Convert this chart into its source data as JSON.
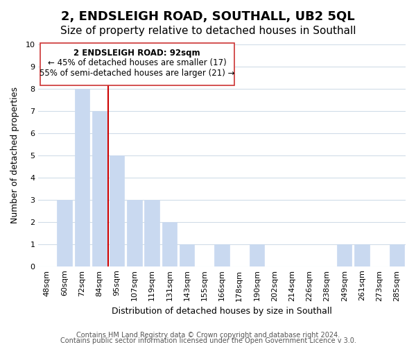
{
  "title": "2, ENDSLEIGH ROAD, SOUTHALL, UB2 5QL",
  "subtitle": "Size of property relative to detached houses in Southall",
  "xlabel": "Distribution of detached houses by size in Southall",
  "ylabel": "Number of detached properties",
  "categories": [
    "48sqm",
    "60sqm",
    "72sqm",
    "84sqm",
    "95sqm",
    "107sqm",
    "119sqm",
    "131sqm",
    "143sqm",
    "155sqm",
    "166sqm",
    "178sqm",
    "190sqm",
    "202sqm",
    "214sqm",
    "226sqm",
    "238sqm",
    "249sqm",
    "261sqm",
    "273sqm",
    "285sqm"
  ],
  "values": [
    0,
    3,
    8,
    7,
    5,
    3,
    3,
    2,
    1,
    0,
    1,
    0,
    1,
    0,
    0,
    0,
    0,
    1,
    1,
    0,
    1
  ],
  "bar_color": "#c9d9f0",
  "bar_edge_color": "#c9d9f0",
  "highlight_index": 4,
  "highlight_line_color": "#cc0000",
  "ylim": [
    0,
    10
  ],
  "yticks": [
    0,
    1,
    2,
    3,
    4,
    5,
    6,
    7,
    8,
    9,
    10
  ],
  "annotation_title": "2 ENDSLEIGH ROAD: 92sqm",
  "annotation_line1": "← 45% of detached houses are smaller (17)",
  "annotation_line2": "55% of semi-detached houses are larger (21) →",
  "footer1": "Contains HM Land Registry data © Crown copyright and database right 2024.",
  "footer2": "Contains public sector information licensed under the Open Government Licence v 3.0.",
  "background_color": "#ffffff",
  "grid_color": "#d0dce8",
  "title_fontsize": 13,
  "subtitle_fontsize": 11,
  "axis_label_fontsize": 9,
  "tick_fontsize": 8,
  "annotation_fontsize": 8.5,
  "footer_fontsize": 7
}
